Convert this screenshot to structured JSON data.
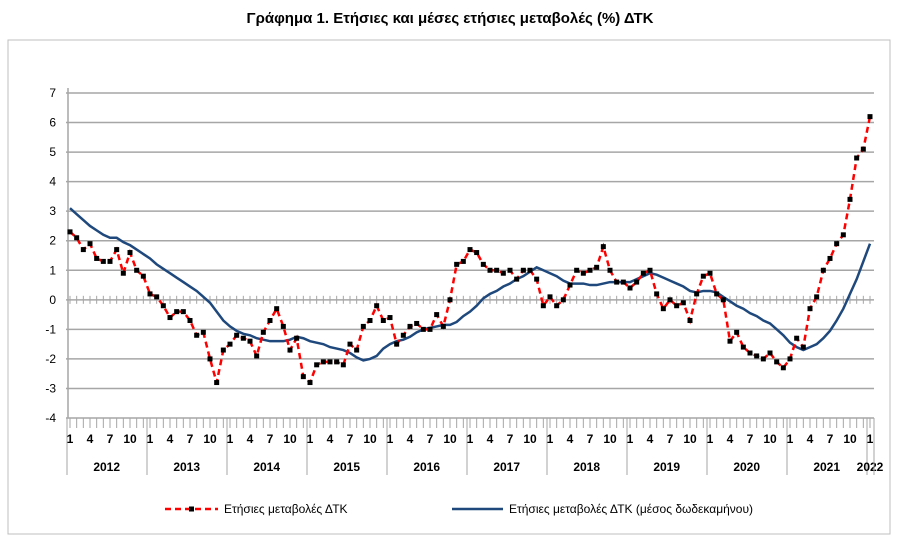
{
  "chart_data": {
    "type": "line",
    "title": "Γράφημα 1. Ετήσιες και μέσες ετήσιες μεταβολές (%) ΔΤΚ",
    "xlabel": "",
    "ylabel": "",
    "ylim": [
      -4,
      7
    ],
    "yticks": [
      -4,
      -3,
      -2,
      -1,
      0,
      1,
      2,
      3,
      4,
      5,
      6,
      7
    ],
    "grid": true,
    "legend_position": "bottom",
    "x_start": "2012-01",
    "x_end": "2022-01",
    "month_tick_labels": [
      "1",
      "4",
      "7",
      "10"
    ],
    "years": [
      "2012",
      "2013",
      "2014",
      "2015",
      "2016",
      "2017",
      "2018",
      "2019",
      "2020",
      "2021",
      "2022"
    ],
    "series": [
      {
        "name": "Ετήσιες μεταβολές ΔΤΚ",
        "color": "#ff0000",
        "marker_color": "#000000",
        "style": "dashed-markers",
        "values": [
          2.3,
          2.1,
          1.7,
          1.9,
          1.4,
          1.3,
          1.3,
          1.7,
          0.9,
          1.6,
          1.0,
          0.8,
          0.2,
          0.1,
          -0.2,
          -0.6,
          -0.4,
          -0.4,
          -0.7,
          -1.2,
          -1.1,
          -2.0,
          -2.8,
          -1.7,
          -1.5,
          -1.2,
          -1.3,
          -1.4,
          -1.9,
          -1.1,
          -0.7,
          -0.3,
          -0.9,
          -1.7,
          -1.3,
          -2.6,
          -2.8,
          -2.2,
          -2.1,
          -2.1,
          -2.1,
          -2.2,
          -1.5,
          -1.7,
          -0.9,
          -0.7,
          -0.2,
          -0.7,
          -0.6,
          -1.5,
          -1.2,
          -0.9,
          -0.8,
          -1.0,
          -1.0,
          -0.5,
          -0.9,
          0.0,
          1.2,
          1.3,
          1.7,
          1.6,
          1.2,
          1.0,
          1.0,
          0.9,
          1.0,
          0.7,
          1.0,
          1.0,
          0.7,
          -0.2,
          0.1,
          -0.2,
          0.0,
          0.5,
          1.0,
          0.9,
          1.0,
          1.1,
          1.8,
          1.0,
          0.6,
          0.6,
          0.4,
          0.6,
          0.9,
          1.0,
          0.2,
          -0.3,
          0.0,
          -0.2,
          -0.1,
          -0.7,
          0.2,
          0.8,
          0.9,
          0.2,
          0.0,
          -1.4,
          -1.1,
          -1.6,
          -1.8,
          -1.9,
          -2.0,
          -1.8,
          -2.1,
          -2.3,
          -2.0,
          -1.3,
          -1.6,
          -0.3,
          0.1,
          1.0,
          1.4,
          1.9,
          2.2,
          3.4,
          4.8,
          5.1,
          6.2
        ]
      },
      {
        "name": "Ετήσιες μεταβολές ΔΤΚ (μέσος δωδεκαμήνου)",
        "color": "#1f497d",
        "style": "solid",
        "values": [
          3.1,
          2.9,
          2.7,
          2.5,
          2.35,
          2.2,
          2.1,
          2.1,
          1.95,
          1.85,
          1.7,
          1.55,
          1.4,
          1.2,
          1.05,
          0.9,
          0.75,
          0.6,
          0.45,
          0.3,
          0.1,
          -0.1,
          -0.4,
          -0.7,
          -0.9,
          -1.05,
          -1.15,
          -1.2,
          -1.3,
          -1.35,
          -1.4,
          -1.4,
          -1.4,
          -1.35,
          -1.25,
          -1.3,
          -1.4,
          -1.45,
          -1.5,
          -1.6,
          -1.65,
          -1.7,
          -1.8,
          -1.95,
          -2.05,
          -2.0,
          -1.9,
          -1.65,
          -1.5,
          -1.4,
          -1.35,
          -1.25,
          -1.1,
          -1.0,
          -0.95,
          -0.9,
          -0.85,
          -0.85,
          -0.75,
          -0.55,
          -0.4,
          -0.2,
          0.05,
          0.2,
          0.3,
          0.45,
          0.55,
          0.7,
          0.8,
          0.95,
          1.1,
          1.0,
          0.9,
          0.8,
          0.65,
          0.55,
          0.55,
          0.55,
          0.5,
          0.5,
          0.55,
          0.6,
          0.6,
          0.6,
          0.6,
          0.7,
          0.8,
          0.9,
          0.85,
          0.75,
          0.65,
          0.55,
          0.45,
          0.3,
          0.25,
          0.3,
          0.3,
          0.25,
          0.1,
          -0.05,
          -0.2,
          -0.3,
          -0.45,
          -0.55,
          -0.7,
          -0.8,
          -1.0,
          -1.2,
          -1.45,
          -1.6,
          -1.7,
          -1.6,
          -1.5,
          -1.3,
          -1.05,
          -0.7,
          -0.3,
          0.2,
          0.7,
          1.3,
          1.9
        ]
      }
    ]
  }
}
